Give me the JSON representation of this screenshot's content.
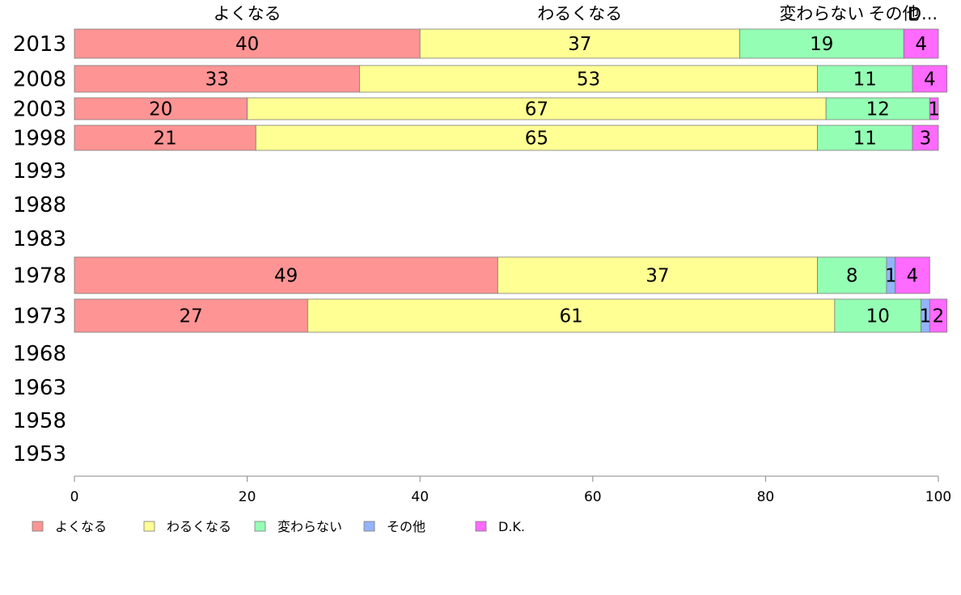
{
  "chart_data": {
    "type": "bar",
    "orientation": "horizontal",
    "stacked": true,
    "categories": [
      "2013",
      "2008",
      "2003",
      "1998",
      "1993",
      "1988",
      "1983",
      "1978",
      "1973",
      "1968",
      "1963",
      "1958",
      "1953"
    ],
    "series": [
      {
        "name": "よくなる",
        "color": "#ff9494",
        "values": [
          40,
          33,
          20,
          21,
          null,
          null,
          null,
          49,
          27,
          null,
          null,
          null,
          null
        ]
      },
      {
        "name": "わるくなる",
        "color": "#ffff94",
        "values": [
          37,
          53,
          67,
          65,
          null,
          null,
          null,
          37,
          61,
          null,
          null,
          null,
          null
        ]
      },
      {
        "name": "変わらない",
        "color": "#94ffb4",
        "values": [
          19,
          11,
          12,
          11,
          null,
          null,
          null,
          8,
          10,
          null,
          null,
          null,
          null
        ]
      },
      {
        "name": "その他",
        "color": "#94b4ff",
        "values": [
          0,
          0,
          0,
          0,
          null,
          null,
          null,
          1,
          1,
          null,
          null,
          null,
          null
        ]
      },
      {
        "name": "D.K.",
        "color": "#ff6aff",
        "values": [
          4,
          4,
          1,
          3,
          null,
          null,
          null,
          4,
          2,
          null,
          null,
          null,
          null
        ]
      }
    ],
    "top_labels": [
      "よくなる",
      "わるくなる",
      "変わらない",
      "その他",
      "D.K."
    ],
    "xlim": [
      0,
      100
    ],
    "xticks": [
      "0",
      "20",
      "40",
      "60",
      "80",
      "100"
    ],
    "grid": false,
    "legend_position": "bottom-left",
    "xlabel": "",
    "ylabel": ""
  }
}
